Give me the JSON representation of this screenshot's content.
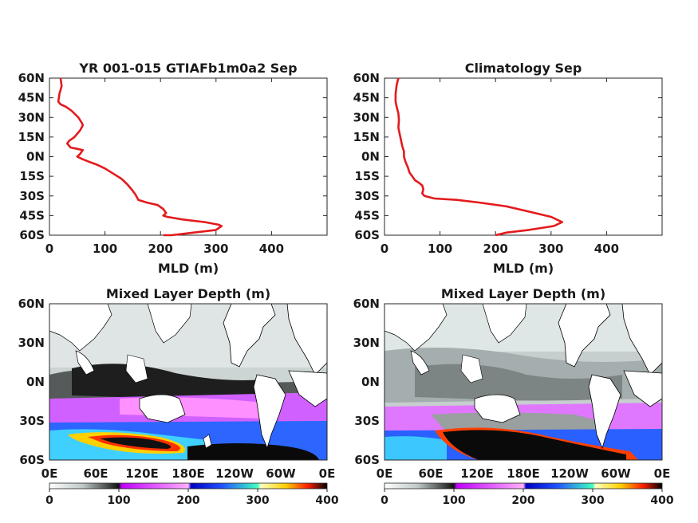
{
  "chart_data": [
    {
      "type": "line",
      "title": "YR 001-015 GTIAFb1m0a2 Sep",
      "xlabel": "MLD (m)",
      "ylabel": "",
      "xlim": [
        0,
        500
      ],
      "ylim": [
        -60,
        60
      ],
      "x_ticks": [
        "0",
        "100",
        "200",
        "300",
        "400"
      ],
      "y_ticks": [
        "60N",
        "45N",
        "30N",
        "15N",
        "0N",
        "15S",
        "30S",
        "45S",
        "60S"
      ],
      "series": [
        {
          "color": "#e41a1c",
          "points": [
            [
              20,
              60
            ],
            [
              22,
              54
            ],
            [
              18,
              48
            ],
            [
              16,
              42
            ],
            [
              20,
              40
            ],
            [
              30,
              38
            ],
            [
              40,
              35
            ],
            [
              52,
              30
            ],
            [
              58,
              26
            ],
            [
              60,
              24
            ],
            [
              55,
              20
            ],
            [
              45,
              15
            ],
            [
              35,
              12
            ],
            [
              32,
              10
            ],
            [
              38,
              7
            ],
            [
              50,
              6
            ],
            [
              60,
              5
            ],
            [
              55,
              2
            ],
            [
              50,
              0
            ],
            [
              60,
              -2
            ],
            [
              72,
              -4
            ],
            [
              85,
              -6
            ],
            [
              100,
              -9
            ],
            [
              115,
              -13
            ],
            [
              130,
              -17
            ],
            [
              140,
              -21
            ],
            [
              148,
              -25
            ],
            [
              155,
              -29
            ],
            [
              160,
              -33
            ],
            [
              175,
              -35
            ],
            [
              195,
              -37
            ],
            [
              205,
              -40
            ],
            [
              210,
              -43
            ],
            [
              205,
              -45
            ],
            [
              212,
              -46
            ],
            [
              240,
              -48
            ],
            [
              280,
              -50
            ],
            [
              305,
              -52
            ],
            [
              310,
              -53
            ],
            [
              300,
              -56
            ],
            [
              260,
              -58
            ],
            [
              220,
              -60
            ],
            [
              205,
              -60
            ]
          ]
        }
      ]
    },
    {
      "type": "line",
      "title": "Climatology Sep",
      "xlabel": "MLD (m)",
      "ylabel": "",
      "xlim": [
        0,
        500
      ],
      "ylim": [
        -60,
        60
      ],
      "x_ticks": [
        "0",
        "100",
        "200",
        "300",
        "400"
      ],
      "y_ticks": [
        "60N",
        "45N",
        "30N",
        "15N",
        "0N",
        "15S",
        "30S",
        "45S",
        "60S"
      ],
      "series": [
        {
          "color": "#e41a1c",
          "points": [
            [
              25,
              60
            ],
            [
              22,
              55
            ],
            [
              20,
              48
            ],
            [
              20,
              42
            ],
            [
              22,
              38
            ],
            [
              25,
              33
            ],
            [
              26,
              28
            ],
            [
              25,
              22
            ],
            [
              28,
              16
            ],
            [
              30,
              12
            ],
            [
              32,
              8
            ],
            [
              35,
              4
            ],
            [
              35,
              0
            ],
            [
              38,
              -4
            ],
            [
              42,
              -8
            ],
            [
              45,
              -12
            ],
            [
              50,
              -15
            ],
            [
              55,
              -18
            ],
            [
              62,
              -20
            ],
            [
              68,
              -22
            ],
            [
              70,
              -25
            ],
            [
              68,
              -28
            ],
            [
              72,
              -30
            ],
            [
              90,
              -32
            ],
            [
              130,
              -33
            ],
            [
              170,
              -35
            ],
            [
              220,
              -38
            ],
            [
              260,
              -42
            ],
            [
              300,
              -46
            ],
            [
              320,
              -50
            ],
            [
              305,
              -53
            ],
            [
              260,
              -56
            ],
            [
              220,
              -58
            ],
            [
              200,
              -60
            ]
          ]
        }
      ]
    },
    {
      "type": "heatmap",
      "title": "Mixed Layer Depth (m)",
      "x_ticks": [
        "0E",
        "60E",
        "120E",
        "180E",
        "120W",
        "60W",
        "0E"
      ],
      "y_ticks": [
        "60N",
        "30N",
        "0N",
        "30S",
        "60S"
      ],
      "colorbar": {
        "range": [
          0,
          400
        ],
        "ticks": [
          "0",
          "100",
          "200",
          "300",
          "400"
        ]
      }
    },
    {
      "type": "heatmap",
      "title": "Mixed Layer Depth (m)",
      "x_ticks": [
        "0E",
        "60E",
        "120E",
        "180E",
        "120W",
        "60W",
        "0E"
      ],
      "y_ticks": [
        "60N",
        "30N",
        "0N",
        "30S",
        "60S"
      ],
      "colorbar": {
        "range": [
          0,
          400
        ],
        "ticks": [
          "0",
          "100",
          "200",
          "300",
          "400"
        ]
      }
    }
  ]
}
